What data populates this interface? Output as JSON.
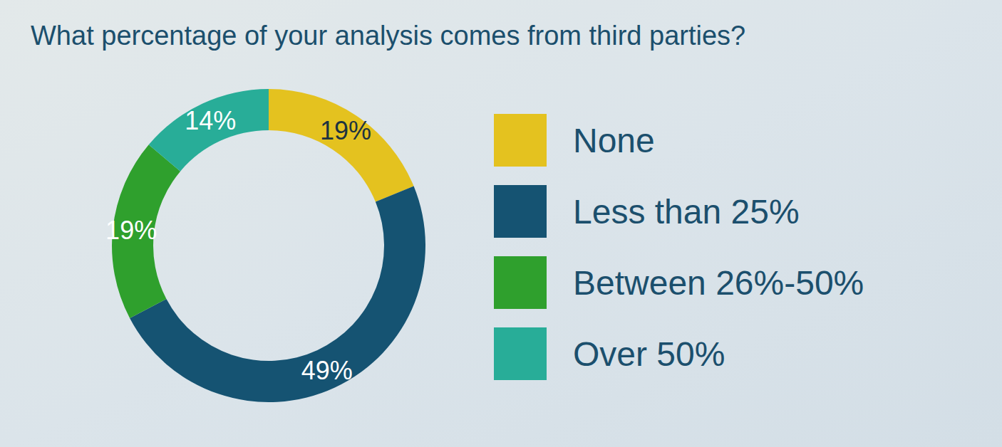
{
  "chart_data": {
    "type": "pie",
    "title": "What percentage of your analysis comes from third parties?",
    "categories": [
      "None",
      "Less than 25%",
      "Between 26%-50%",
      "Over 50%"
    ],
    "values": [
      19,
      49,
      19,
      14
    ],
    "value_labels": [
      "19%",
      "49%",
      "19%",
      "14%"
    ],
    "colors": [
      "#e4c21f",
      "#155372",
      "#2fa02d",
      "#28ad98"
    ],
    "data_labels": true,
    "legend": "right"
  }
}
